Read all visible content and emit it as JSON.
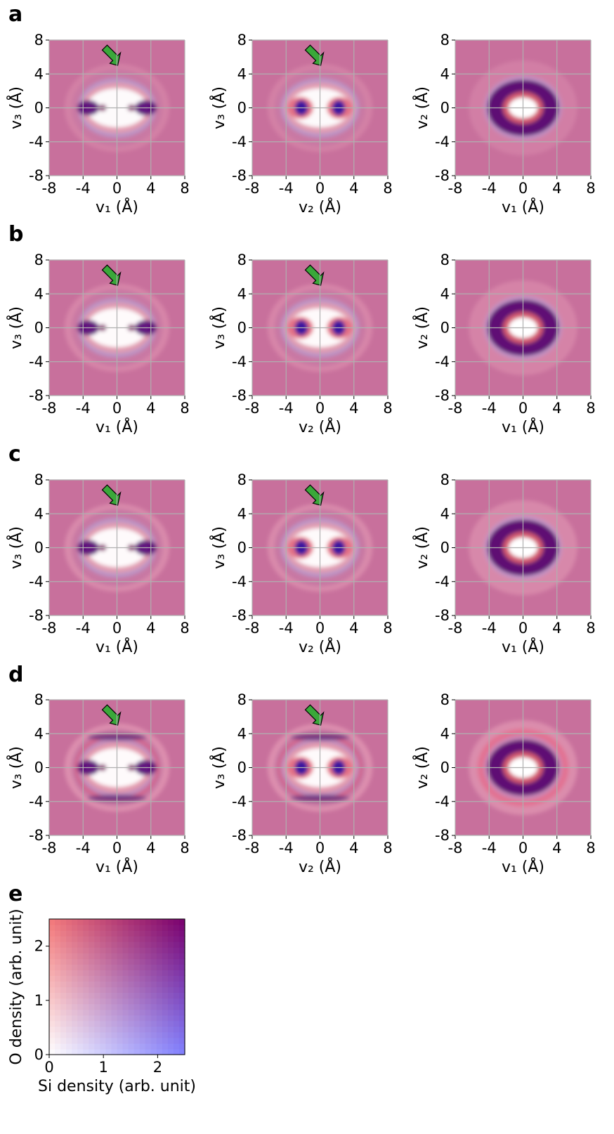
{
  "panel_labels": [
    "a",
    "b",
    "c",
    "d",
    "e"
  ],
  "chart_data": [
    {
      "type": "heatmap",
      "xlabel": "v₁ (Å)",
      "ylabel": "v₃ (Å)",
      "xlim": [
        -8,
        8
      ],
      "ylim": [
        -8,
        8
      ],
      "xticks": [
        -8,
        -4,
        0,
        4,
        8
      ],
      "yticks": [
        -8,
        -4,
        0,
        4,
        8
      ],
      "grid": true
    },
    {
      "type": "heatmap",
      "xlabel": "v₂ (Å)",
      "ylabel": "v₃ (Å)",
      "xlim": [
        -8,
        8
      ],
      "ylim": [
        -8,
        8
      ],
      "xticks": [
        -8,
        -4,
        0,
        4,
        8
      ],
      "yticks": [
        -8,
        -4,
        0,
        4,
        8
      ],
      "grid": true
    },
    {
      "type": "heatmap",
      "xlabel": "v₁ (Å)",
      "ylabel": "v₂ (Å)",
      "xlim": [
        -8,
        8
      ],
      "ylim": [
        -8,
        8
      ],
      "xticks": [
        -8,
        -4,
        0,
        4,
        8
      ],
      "yticks": [
        -8,
        -4,
        0,
        4,
        8
      ],
      "grid": true
    },
    {
      "type": "heatmap",
      "xlabel": "v₁ (Å)",
      "ylabel": "v₃ (Å)",
      "xlim": [
        -8,
        8
      ],
      "ylim": [
        -8,
        8
      ],
      "xticks": [
        -8,
        -4,
        0,
        4,
        8
      ],
      "yticks": [
        -8,
        -4,
        0,
        4,
        8
      ],
      "grid": true
    },
    {
      "type": "heatmap",
      "xlabel": "v₂ (Å)",
      "ylabel": "v₃ (Å)",
      "xlim": [
        -8,
        8
      ],
      "ylim": [
        -8,
        8
      ],
      "xticks": [
        -8,
        -4,
        0,
        4,
        8
      ],
      "yticks": [
        -8,
        -4,
        0,
        4,
        8
      ],
      "grid": true
    },
    {
      "type": "heatmap",
      "xlabel": "v₁ (Å)",
      "ylabel": "v₂ (Å)",
      "xlim": [
        -8,
        8
      ],
      "ylim": [
        -8,
        8
      ],
      "xticks": [
        -8,
        -4,
        0,
        4,
        8
      ],
      "yticks": [
        -8,
        -4,
        0,
        4,
        8
      ],
      "grid": true
    },
    {
      "type": "heatmap",
      "xlabel": "v₁ (Å)",
      "ylabel": "v₃ (Å)",
      "xlim": [
        -8,
        8
      ],
      "ylim": [
        -8,
        8
      ],
      "xticks": [
        -8,
        -4,
        0,
        4,
        8
      ],
      "yticks": [
        -8,
        -4,
        0,
        4,
        8
      ],
      "grid": true
    },
    {
      "type": "heatmap",
      "xlabel": "v₂ (Å)",
      "ylabel": "v₃ (Å)",
      "xlim": [
        -8,
        8
      ],
      "ylim": [
        -8,
        8
      ],
      "xticks": [
        -8,
        -4,
        0,
        4,
        8
      ],
      "yticks": [
        -8,
        -4,
        0,
        4,
        8
      ],
      "grid": true
    },
    {
      "type": "heatmap",
      "xlabel": "v₁ (Å)",
      "ylabel": "v₂ (Å)",
      "xlim": [
        -8,
        8
      ],
      "ylim": [
        -8,
        8
      ],
      "xticks": [
        -8,
        -4,
        0,
        4,
        8
      ],
      "yticks": [
        -8,
        -4,
        0,
        4,
        8
      ],
      "grid": true
    },
    {
      "type": "heatmap",
      "xlabel": "v₁ (Å)",
      "ylabel": "v₃ (Å)",
      "xlim": [
        -8,
        8
      ],
      "ylim": [
        -8,
        8
      ],
      "xticks": [
        -8,
        -4,
        0,
        4,
        8
      ],
      "yticks": [
        -8,
        -4,
        0,
        4,
        8
      ],
      "grid": true
    },
    {
      "type": "heatmap",
      "xlabel": "v₂ (Å)",
      "ylabel": "v₃ (Å)",
      "xlim": [
        -8,
        8
      ],
      "ylim": [
        -8,
        8
      ],
      "xticks": [
        -8,
        -4,
        0,
        4,
        8
      ],
      "yticks": [
        -8,
        -4,
        0,
        4,
        8
      ],
      "grid": true
    },
    {
      "type": "heatmap",
      "xlabel": "v₁ (Å)",
      "ylabel": "v₂ (Å)",
      "xlim": [
        -8,
        8
      ],
      "ylim": [
        -8,
        8
      ],
      "xticks": [
        -8,
        -4,
        0,
        4,
        8
      ],
      "yticks": [
        -8,
        -4,
        0,
        4,
        8
      ],
      "grid": true
    },
    {
      "type": "colormap",
      "xlabel": "Si density (arb. unit)",
      "ylabel": "O density (arb. unit)",
      "xlim": [
        0,
        2.5
      ],
      "ylim": [
        0,
        2.5
      ],
      "xticks": [
        0,
        1,
        2
      ],
      "yticks": [
        0,
        1,
        2
      ],
      "grid": false
    }
  ]
}
